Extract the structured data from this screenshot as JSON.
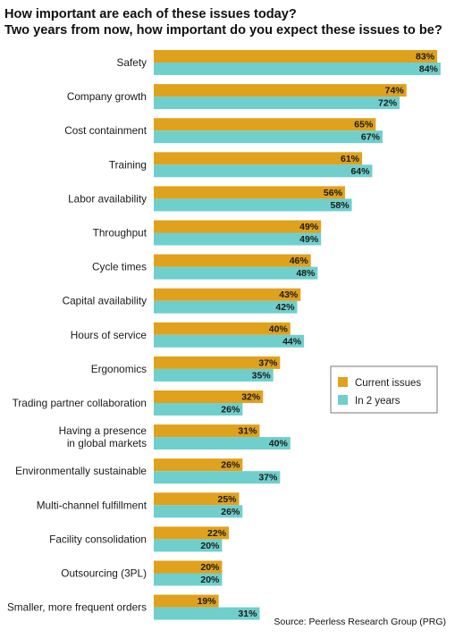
{
  "title_line1": "How important are each of these issues today?",
  "title_line2": "Two years from now, how important do you expect these issues to be?",
  "source": "Source: Peerless Research Group (PRG)",
  "colors": {
    "current": "#E0A11C",
    "future": "#6FCFCC",
    "text": "#1a1a1a"
  },
  "chart_data": {
    "type": "bar",
    "orientation": "horizontal",
    "title": "How important are each of these issues today? Two years from now, how important do you expect these issues to be?",
    "xlabel": "",
    "ylabel": "",
    "xlim": [
      0,
      100
    ],
    "grid": false,
    "legend_position": "right",
    "value_suffix": "%",
    "categories": [
      [
        "Safety"
      ],
      [
        "Company growth"
      ],
      [
        "Cost containment"
      ],
      [
        "Training"
      ],
      [
        "Labor availability"
      ],
      [
        "Throughput"
      ],
      [
        "Cycle times"
      ],
      [
        "Capital availability"
      ],
      [
        "Hours of service"
      ],
      [
        "Ergonomics"
      ],
      [
        "Trading partner collaboration"
      ],
      [
        "Having a presence",
        "in global markets"
      ],
      [
        "Environmentally sustainable"
      ],
      [
        "Multi-channel fulfillment"
      ],
      [
        "Facility consolidation"
      ],
      [
        "Outsourcing (3PL)"
      ],
      [
        "Smaller, more frequent orders"
      ]
    ],
    "series": [
      {
        "name": "Current issues",
        "values": [
          83,
          74,
          65,
          61,
          56,
          49,
          46,
          43,
          40,
          37,
          32,
          31,
          26,
          25,
          22,
          20,
          19
        ]
      },
      {
        "name": "In 2 years",
        "values": [
          84,
          72,
          67,
          64,
          58,
          49,
          48,
          42,
          44,
          35,
          26,
          40,
          37,
          26,
          20,
          20,
          31
        ]
      }
    ]
  }
}
